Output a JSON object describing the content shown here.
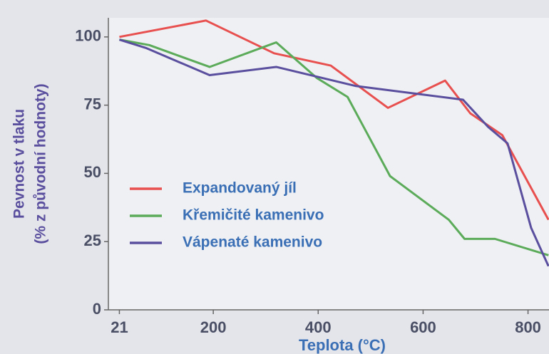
{
  "chart_data": {
    "type": "line",
    "ylabel": [
      "Pevnost v tlaku",
      "(% z původní hodnoty)"
    ],
    "xlabel": "Teplota   (°C)",
    "xlim": [
      0,
      840
    ],
    "xticks": [
      21,
      200,
      400,
      600,
      800
    ],
    "ylim": [
      0,
      107
    ],
    "yticks": [
      0,
      25,
      50,
      75,
      100
    ],
    "legend": "left",
    "series": [
      {
        "name": "Expandovaný jíl",
        "color": "#e8504f",
        "x": [
          21,
          186,
          316,
          424,
          533,
          642,
          690,
          751,
          839
        ],
        "values": [
          100,
          106,
          94,
          89.5,
          74,
          84,
          72,
          64,
          33
        ]
      },
      {
        "name": "Křemičité kamenivo",
        "color": "#5cab5a",
        "x": [
          21,
          78,
          193,
          320,
          397,
          456,
          537,
          649,
          679,
          737,
          839
        ],
        "values": [
          99,
          97,
          89,
          98,
          85,
          78,
          49,
          33,
          26,
          26,
          20
        ]
      },
      {
        "name": "Vápenaté kamenivo",
        "color": "#5a4f9e",
        "x": [
          21,
          71,
          193,
          320,
          472,
          676,
          724,
          761,
          806,
          839
        ],
        "values": [
          99,
          96,
          86,
          89,
          82,
          77,
          67,
          61,
          30,
          16
        ]
      }
    ]
  }
}
